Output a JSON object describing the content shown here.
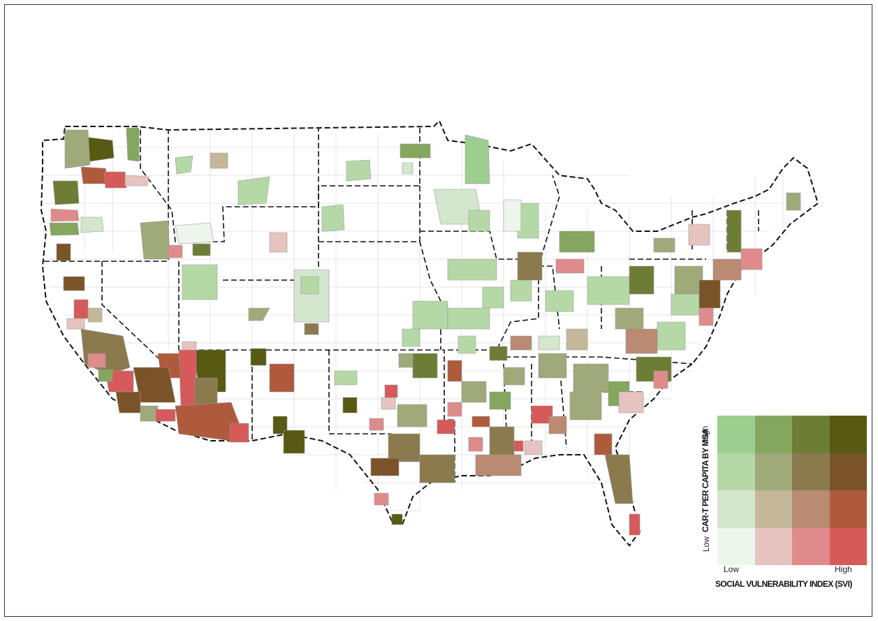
{
  "legend": {
    "y_title": "CAR-T PER CAPITA BY MSA",
    "x_title": "SOCIAL VULNERABILITY INDEX (SVI)",
    "y_high": "High",
    "y_low": "Low",
    "x_low": "Low",
    "x_high": "High",
    "colors": [
      [
        "#9ccf8f",
        "#84a65f",
        "#6e7d36",
        "#575a13"
      ],
      [
        "#b5d9a6",
        "#a0a97a",
        "#8c7a4f",
        "#7a5428"
      ],
      [
        "#d4e6cd",
        "#c4b79a",
        "#ba8a72",
        "#b05a3d"
      ],
      [
        "#eef5ec",
        "#e6c3bf",
        "#df8b8b",
        "#d65a5a"
      ]
    ]
  }
}
